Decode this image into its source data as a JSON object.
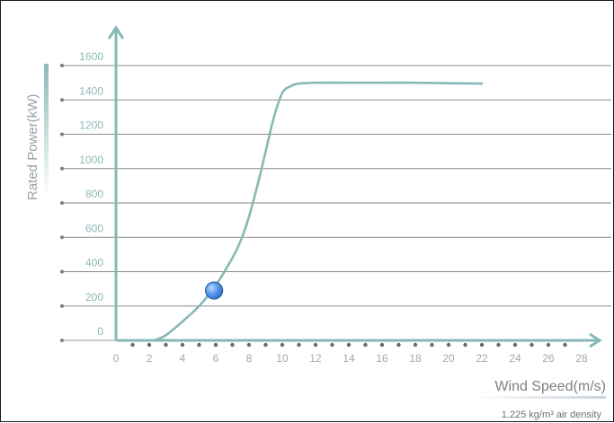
{
  "chart_data": {
    "type": "line",
    "title": "",
    "xlabel": "Wind Speed(m/s)",
    "ylabel": "Rated Power(kW)",
    "note": "1.225 kg/m³ air density",
    "xlim": [
      0,
      28
    ],
    "ylim": [
      0,
      1600
    ],
    "x_ticks": [
      "0",
      "2",
      "4",
      "6",
      "8",
      "10",
      "12",
      "14",
      "16",
      "18",
      "20",
      "22",
      "24",
      "26",
      "28"
    ],
    "y_ticks": [
      "0",
      "200",
      "400",
      "600",
      "800",
      "1000",
      "1200",
      "1400",
      "1600"
    ],
    "grid": true,
    "series": [
      {
        "x": [
          2.3,
          3,
          4,
          5,
          6,
          7,
          7.5,
          8,
          8.5,
          9,
          9.5,
          10,
          10.5,
          11,
          12,
          14,
          16,
          18,
          20,
          22
        ],
        "y": [
          0,
          30,
          110,
          200,
          320,
          480,
          580,
          720,
          900,
          1100,
          1300,
          1440,
          1480,
          1495,
          1500,
          1500,
          1500,
          1500,
          1497,
          1495
        ]
      }
    ],
    "marker": {
      "x": 5.9,
      "y": 290
    },
    "colors": {
      "curve": "#86b9b6",
      "axis": "#86b9b6",
      "grid": "#8a8a8a",
      "marker": "#3f82d6"
    }
  }
}
